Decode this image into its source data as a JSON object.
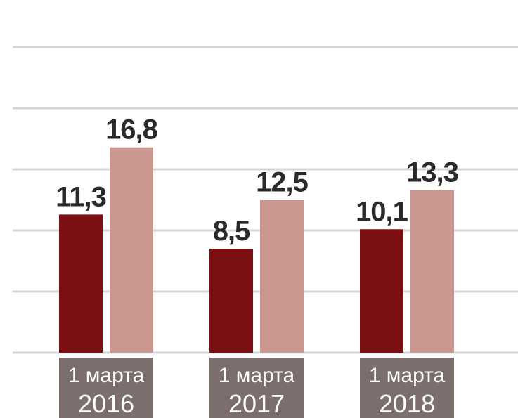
{
  "chart_data": {
    "type": "bar",
    "title": "",
    "xlabel": "",
    "ylabel": "",
    "categories": [
      {
        "line1": "1 марта",
        "line2": "2016"
      },
      {
        "line1": "1 марта",
        "line2": "2017"
      },
      {
        "line1": "1 марта",
        "line2": "2018"
      }
    ],
    "series": [
      {
        "values": [
          11.3,
          8.5,
          10.1
        ],
        "labels": [
          "11,3",
          "8,5",
          "10,1"
        ],
        "color": "#7b0f12"
      },
      {
        "values": [
          16.8,
          12.5,
          13.3
        ],
        "labels": [
          "16,8",
          "12,5",
          "13,3"
        ],
        "color": "#c99690"
      }
    ],
    "ylim": [
      0,
      25
    ],
    "grid": true,
    "gridline_values": [
      0,
      5,
      10,
      15,
      20,
      25
    ],
    "colors": {
      "gridline": "#d4d4d4",
      "category_box": "#7d6e6e",
      "value_text": "#2a2a2a"
    }
  }
}
